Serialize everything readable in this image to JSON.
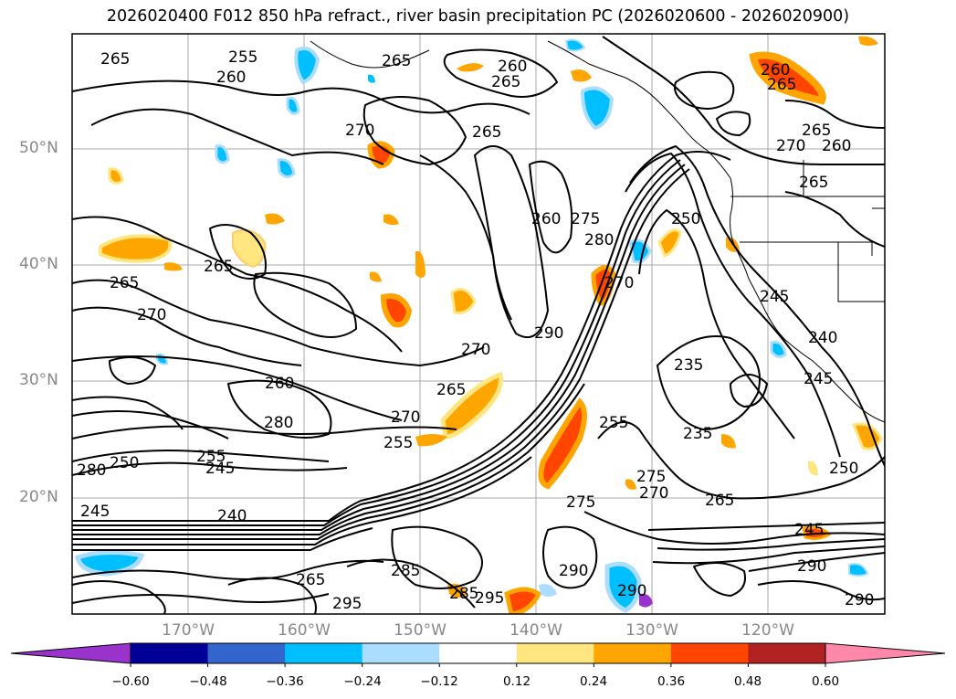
{
  "title": "2026020400 F012 850 hPa refract., river basin precipitation PC (2026020600 - 2026020900)",
  "lat_labels": [
    "50°N",
    "40°N",
    "30°N",
    "20°N"
  ],
  "lon_labels": [
    "170°W",
    "160°W",
    "150°W",
    "140°W",
    "130°W",
    "120°W"
  ],
  "colorbar": {
    "colors": [
      "#9933cc",
      "#000099",
      "#3366cc",
      "#00bfff",
      "#aaddff",
      "#ffffff",
      "#ffe680",
      "#ffa500",
      "#ff4500",
      "#b22222",
      "#ff88aa"
    ],
    "ticks": [
      "−0.60",
      "−0.48",
      "−0.36",
      "−0.24",
      "−0.12",
      "0.12",
      "0.24",
      "0.36",
      "0.48",
      "0.60"
    ]
  },
  "contour_labels": [
    {
      "text": "265"
    },
    {
      "text": "255"
    },
    {
      "text": "260"
    },
    {
      "text": "265"
    },
    {
      "text": "260"
    },
    {
      "text": "265"
    },
    {
      "text": "265"
    },
    {
      "text": "260"
    },
    {
      "text": "270"
    },
    {
      "text": "265"
    },
    {
      "text": "270"
    },
    {
      "text": "260"
    },
    {
      "text": "265"
    },
    {
      "text": "265"
    },
    {
      "text": "260"
    },
    {
      "text": "275"
    },
    {
      "text": "280"
    },
    {
      "text": "250"
    },
    {
      "text": "265"
    },
    {
      "text": "270"
    },
    {
      "text": "265"
    },
    {
      "text": "270"
    },
    {
      "text": "245"
    },
    {
      "text": "270"
    },
    {
      "text": "290"
    },
    {
      "text": "235"
    },
    {
      "text": "240"
    },
    {
      "text": "245"
    },
    {
      "text": "260"
    },
    {
      "text": "265"
    },
    {
      "text": "280"
    },
    {
      "text": "270"
    },
    {
      "text": "255"
    },
    {
      "text": "255"
    },
    {
      "text": "235"
    },
    {
      "text": "280"
    },
    {
      "text": "250"
    },
    {
      "text": "255"
    },
    {
      "text": "245"
    },
    {
      "text": "250"
    },
    {
      "text": "275"
    },
    {
      "text": "270"
    },
    {
      "text": "275"
    },
    {
      "text": "265"
    },
    {
      "text": "240"
    },
    {
      "text": "245"
    },
    {
      "text": "285"
    },
    {
      "text": "245"
    },
    {
      "text": "290"
    },
    {
      "text": "265"
    },
    {
      "text": "285"
    },
    {
      "text": "290"
    },
    {
      "text": "290"
    },
    {
      "text": "295"
    },
    {
      "text": "295"
    },
    {
      "text": "290"
    }
  ]
}
